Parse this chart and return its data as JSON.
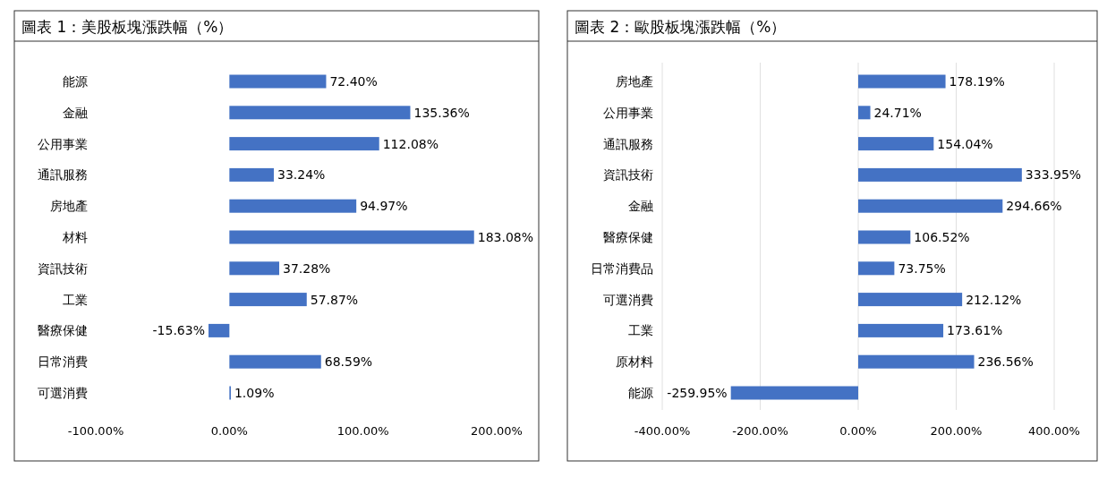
{
  "chart_data": [
    {
      "type": "bar",
      "orientation": "horizontal",
      "title": "圖表 1：美股板塊漲跌幅（%）",
      "categories": [
        "能源",
        "金融",
        "公用事業",
        "通訊服務",
        "房地產",
        "材料",
        "資訊技術",
        "工業",
        "醫療保健",
        "日常消費",
        "可選消費"
      ],
      "values": [
        72.4,
        135.36,
        112.08,
        33.24,
        94.97,
        183.08,
        37.28,
        57.87,
        -15.63,
        68.59,
        1.09
      ],
      "value_labels": [
        "72.40%",
        "135.36%",
        "112.08%",
        "33.24%",
        "94.97%",
        "183.08%",
        "37.28%",
        "57.87%",
        "-15.63%",
        "68.59%",
        "1.09%"
      ],
      "color": "#4472c4",
      "xlim": [
        -100,
        200
      ],
      "xticks": [
        {
          "value": -100,
          "label": "-100.00%"
        },
        {
          "value": 0,
          "label": "0.00%"
        },
        {
          "value": 100,
          "label": "100.00%"
        },
        {
          "value": 200,
          "label": "200.00%"
        }
      ],
      "grid": false
    },
    {
      "type": "bar",
      "orientation": "horizontal",
      "title": "圖表 2：歐股板塊漲跌幅（%）",
      "categories": [
        "房地產",
        "公用事業",
        "通訊服務",
        "資訊技術",
        "金融",
        "醫療保健",
        "日常消費品",
        "可選消費",
        "工業",
        "原材料",
        "能源"
      ],
      "values": [
        178.19,
        24.71,
        154.04,
        333.95,
        294.66,
        106.52,
        73.75,
        212.12,
        173.61,
        236.56,
        -259.95
      ],
      "value_labels": [
        "178.19%",
        "24.71%",
        "154.04%",
        "333.95%",
        "294.66%",
        "106.52%",
        "73.75%",
        "212.12%",
        "173.61%",
        "236.56%",
        "-259.95%"
      ],
      "color": "#4472c4",
      "xlim": [
        -400,
        400
      ],
      "xticks": [
        {
          "value": -400,
          "label": "-400.00%"
        },
        {
          "value": -200,
          "label": "-200.00%"
        },
        {
          "value": 0,
          "label": "0.00%"
        },
        {
          "value": 200,
          "label": "200.00%"
        },
        {
          "value": 400,
          "label": "400.00%"
        }
      ],
      "grid": "x"
    }
  ]
}
